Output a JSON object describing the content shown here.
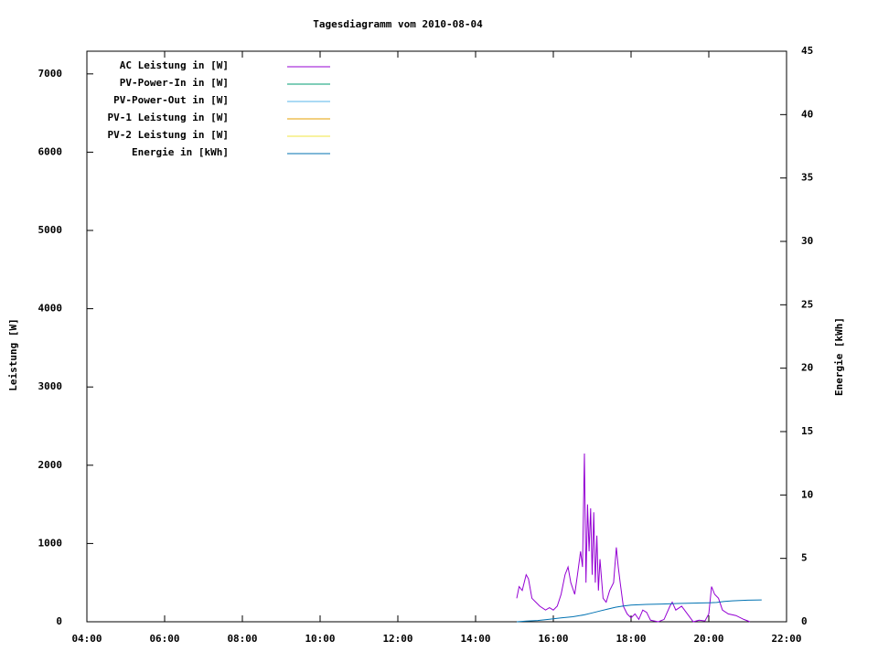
{
  "chart_data": {
    "type": "line",
    "title": "Tagesdiagramm vom 2010-08-04",
    "y_label": "Leistung [W]",
    "y2_label": "Energie [kWh]",
    "xlim": [
      4,
      22
    ],
    "xticks": [
      {
        "value": 4,
        "label": "04:00"
      },
      {
        "value": 6,
        "label": "06:00"
      },
      {
        "value": 8,
        "label": "08:00"
      },
      {
        "value": 10,
        "label": "10:00"
      },
      {
        "value": 12,
        "label": "12:00"
      },
      {
        "value": 14,
        "label": "14:00"
      },
      {
        "value": 16,
        "label": "16:00"
      },
      {
        "value": 18,
        "label": "18:00"
      },
      {
        "value": 20,
        "label": "20:00"
      },
      {
        "value": 22,
        "label": "22:00"
      }
    ],
    "ylim": [
      0,
      7290
    ],
    "yticks": [
      0,
      1000,
      2000,
      3000,
      4000,
      5000,
      6000,
      7000
    ],
    "y2lim": [
      0,
      45
    ],
    "y2ticks": [
      0,
      5,
      10,
      15,
      20,
      25,
      30,
      35,
      40,
      45
    ],
    "series": [
      {
        "name": "AC Leistung in [W]",
        "color": "#9400d3",
        "x": [
          15.06,
          15.12,
          15.2,
          15.3,
          15.36,
          15.45,
          15.55,
          15.65,
          15.8,
          15.9,
          16.0,
          16.1,
          16.2,
          16.3,
          16.38,
          16.45,
          16.55,
          16.62,
          16.7,
          16.75,
          16.8,
          16.84,
          16.88,
          16.92,
          16.96,
          17.0,
          17.04,
          17.08,
          17.12,
          17.16,
          17.2,
          17.28,
          17.36,
          17.45,
          17.55,
          17.62,
          17.67,
          17.72,
          17.8,
          17.9,
          18.0,
          18.1,
          18.2,
          18.3,
          18.4,
          18.5,
          18.6,
          18.7,
          18.85,
          19.0,
          19.06,
          19.15,
          19.3,
          19.45,
          19.6,
          19.75,
          19.9,
          20.0,
          20.07,
          20.15,
          20.25,
          20.35,
          20.5,
          20.7,
          20.9,
          21.06
        ],
        "values": [
          300,
          450,
          400,
          600,
          550,
          300,
          250,
          200,
          150,
          180,
          150,
          200,
          350,
          600,
          700,
          500,
          350,
          600,
          900,
          700,
          2150,
          500,
          1500,
          900,
          1450,
          600,
          1400,
          500,
          1100,
          400,
          800,
          300,
          250,
          400,
          500,
          950,
          700,
          500,
          200,
          100,
          50,
          100,
          30,
          150,
          120,
          20,
          10,
          0,
          30,
          200,
          250,
          150,
          200,
          100,
          0,
          20,
          10,
          100,
          450,
          350,
          300,
          150,
          100,
          80,
          30,
          0
        ]
      },
      {
        "name": "PV-Power-In in [W]",
        "color": "#009e73",
        "x": [],
        "values": []
      },
      {
        "name": "PV-Power-Out in [W]",
        "color": "#56b4e9",
        "x": [],
        "values": []
      },
      {
        "name": "PV-1 Leistung in [W]",
        "color": "#e69f00",
        "x": [],
        "values": []
      },
      {
        "name": "PV-2 Leistung in [W]",
        "color": "#f0e442",
        "x": [],
        "values": []
      },
      {
        "name": "Energie in [kWh]",
        "color": "#0072b2",
        "axis": "y2",
        "x": [
          15.06,
          15.3,
          15.6,
          15.9,
          16.2,
          16.5,
          16.8,
          17.0,
          17.2,
          17.4,
          17.6,
          17.8,
          18.0,
          18.4,
          18.8,
          19.2,
          19.6,
          20.0,
          20.2,
          20.4,
          20.6,
          20.8,
          21.0,
          21.36
        ],
        "values": [
          0,
          0.05,
          0.1,
          0.2,
          0.3,
          0.4,
          0.55,
          0.7,
          0.85,
          1.0,
          1.15,
          1.25,
          1.32,
          1.37,
          1.4,
          1.44,
          1.47,
          1.5,
          1.52,
          1.6,
          1.65,
          1.68,
          1.7,
          1.72
        ]
      }
    ]
  }
}
